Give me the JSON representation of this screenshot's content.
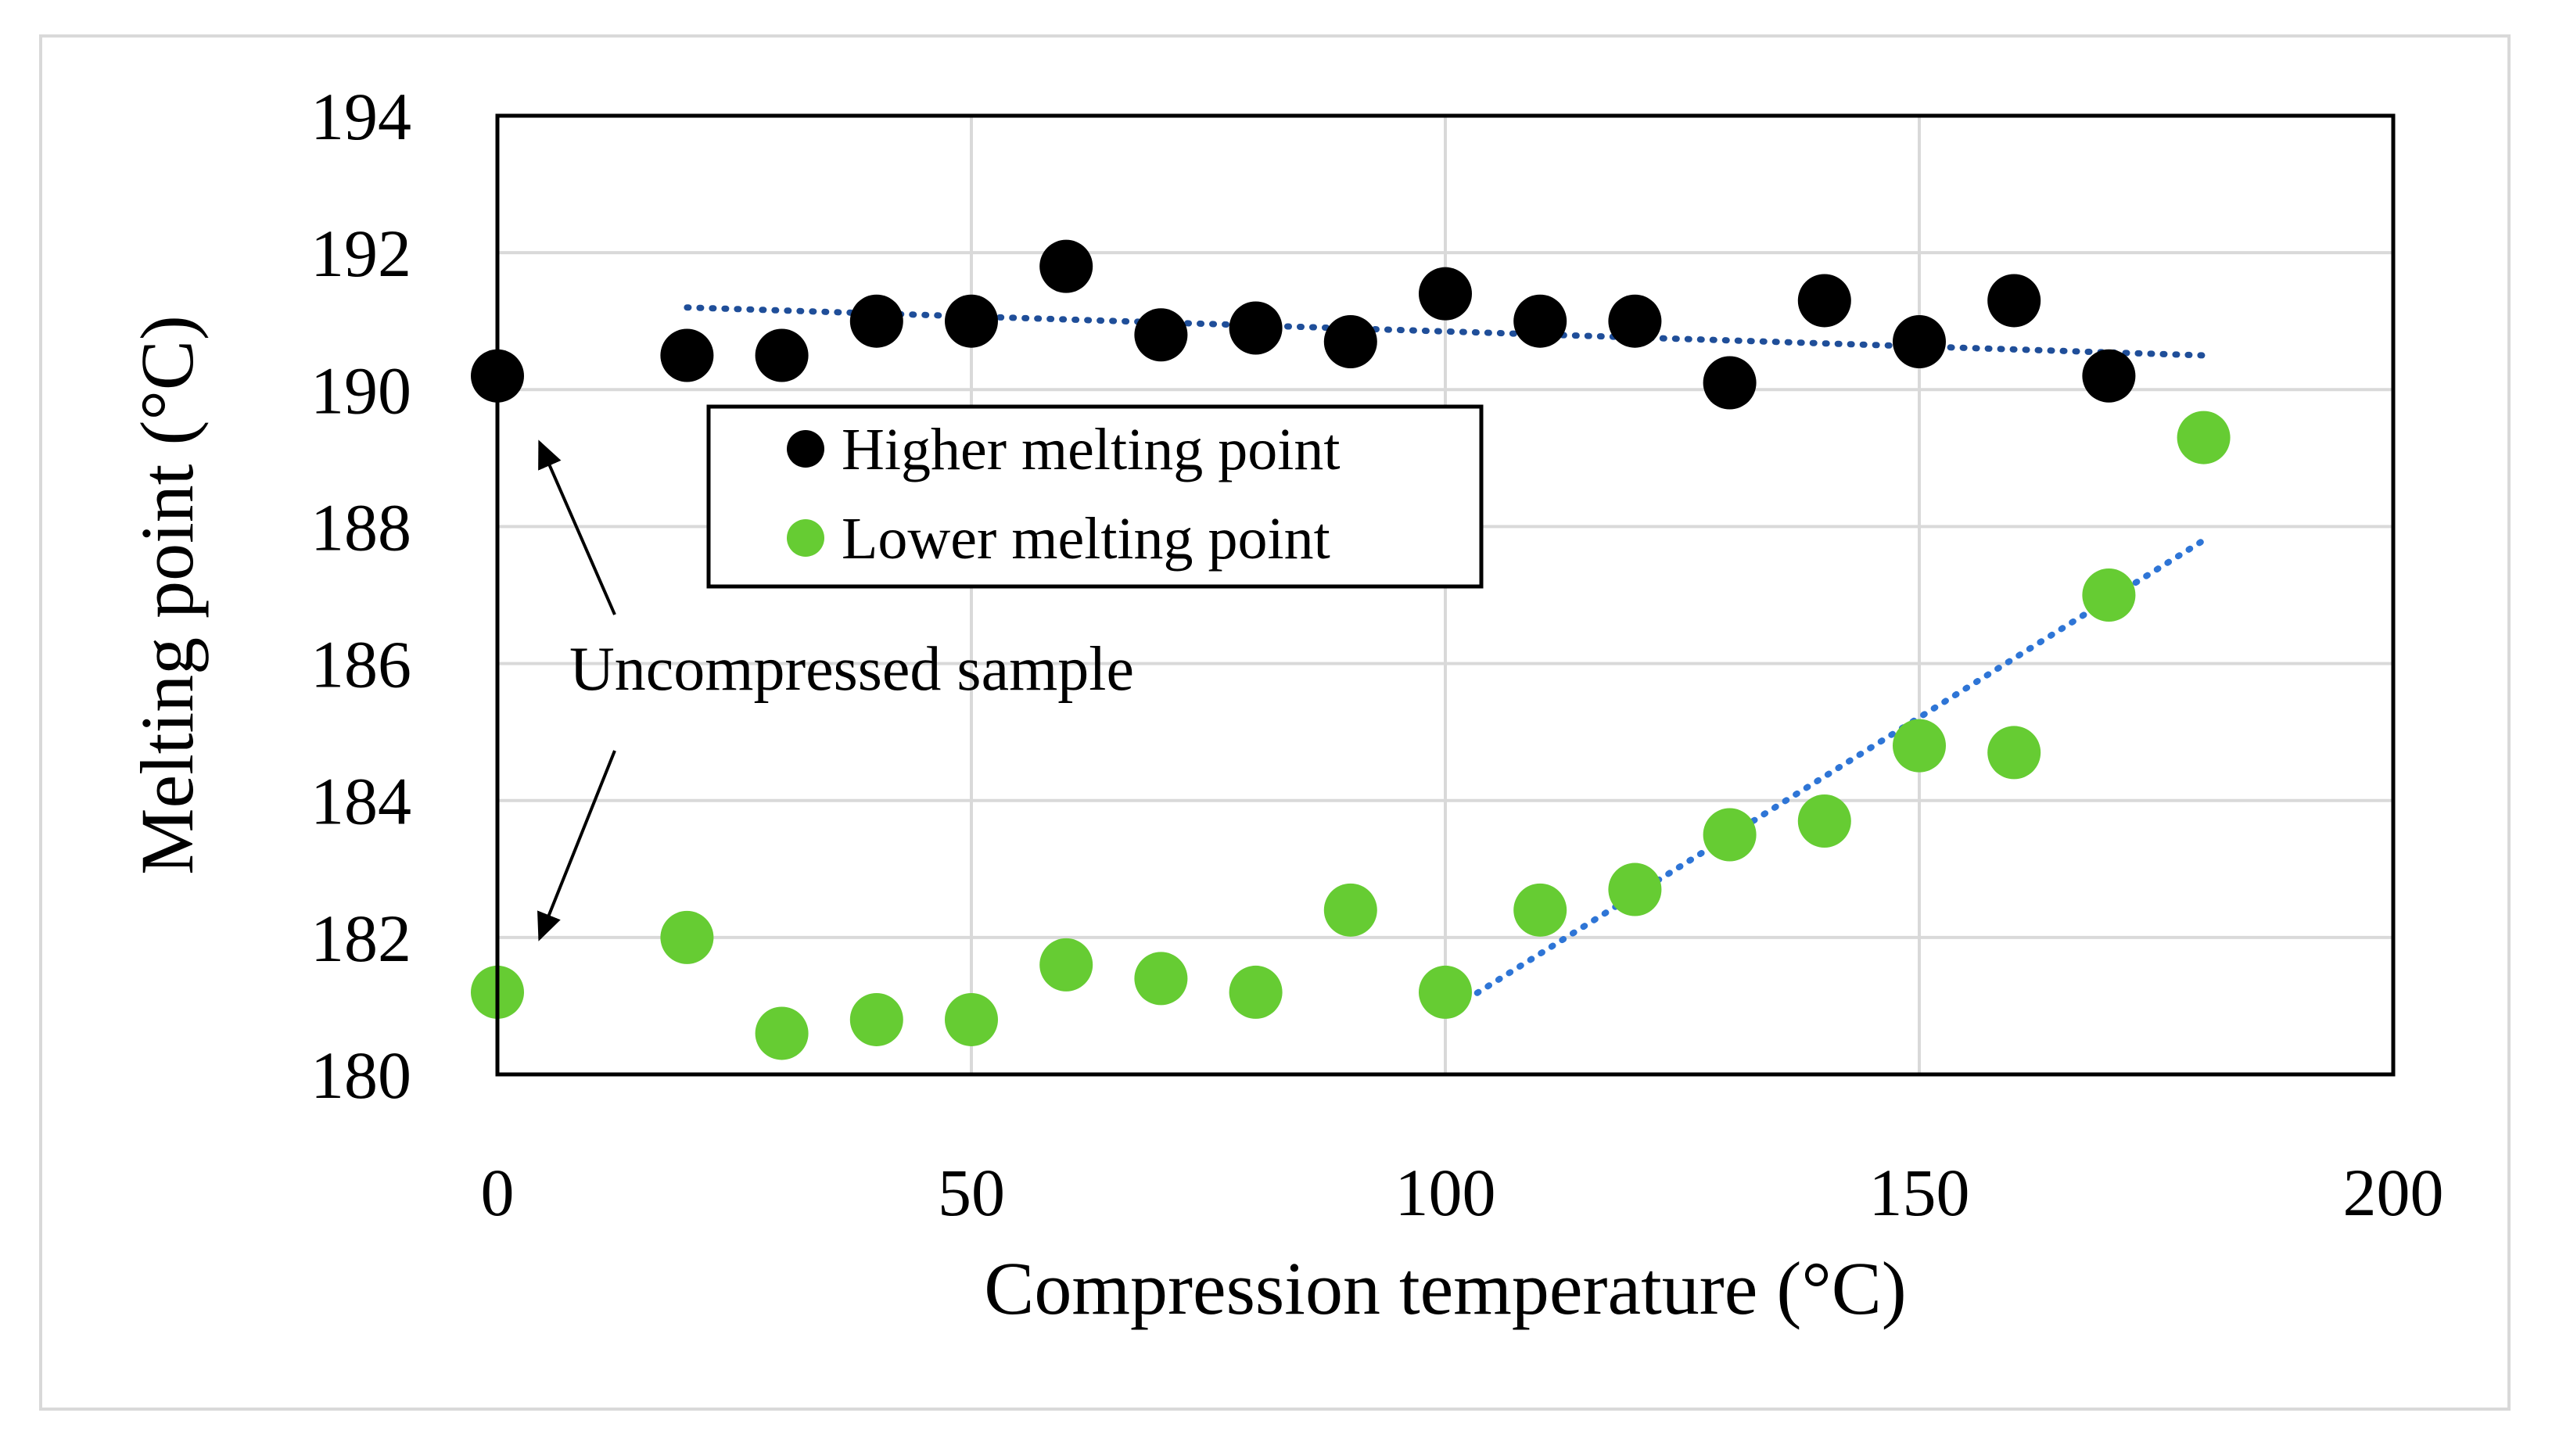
{
  "chart_data": {
    "type": "scatter",
    "title": "",
    "xlabel": "Compression temperature  (°C)",
    "ylabel": "Melting point  (°C)",
    "xlim": [
      0,
      200
    ],
    "ylim": [
      180,
      194
    ],
    "x_ticks": [
      "0",
      "50",
      "100",
      "150",
      "200"
    ],
    "y_ticks": [
      "180",
      "182",
      "184",
      "186",
      "188",
      "190",
      "192",
      "194"
    ],
    "grid": true,
    "legend_position": "center-left",
    "series": [
      {
        "name": "Higher melting point",
        "color": "#000000",
        "points": [
          {
            "x": 0,
            "y": 190.2
          },
          {
            "x": 20,
            "y": 190.5
          },
          {
            "x": 30,
            "y": 190.5
          },
          {
            "x": 40,
            "y": 191.0
          },
          {
            "x": 50,
            "y": 191.0
          },
          {
            "x": 60,
            "y": 191.8
          },
          {
            "x": 70,
            "y": 190.8
          },
          {
            "x": 80,
            "y": 190.9
          },
          {
            "x": 90,
            "y": 190.7
          },
          {
            "x": 100,
            "y": 191.4
          },
          {
            "x": 110,
            "y": 191.0
          },
          {
            "x": 120,
            "y": 191.0
          },
          {
            "x": 130,
            "y": 190.1
          },
          {
            "x": 140,
            "y": 191.3
          },
          {
            "x": 150,
            "y": 190.7
          },
          {
            "x": 160,
            "y": 191.3
          },
          {
            "x": 170,
            "y": 190.2
          }
        ],
        "trendline": {
          "color": "#1f4e99",
          "x": [
            20,
            180
          ],
          "y": [
            191.2,
            190.5
          ]
        }
      },
      {
        "name": "Lower melting point",
        "color": "#66cc33",
        "points": [
          {
            "x": 0,
            "y": 181.2
          },
          {
            "x": 20,
            "y": 182.0
          },
          {
            "x": 30,
            "y": 180.6
          },
          {
            "x": 40,
            "y": 180.8
          },
          {
            "x": 50,
            "y": 180.8
          },
          {
            "x": 60,
            "y": 181.6
          },
          {
            "x": 70,
            "y": 181.4
          },
          {
            "x": 80,
            "y": 181.2
          },
          {
            "x": 90,
            "y": 182.4
          },
          {
            "x": 100,
            "y": 181.2
          },
          {
            "x": 110,
            "y": 182.4
          },
          {
            "x": 120,
            "y": 182.7
          },
          {
            "x": 130,
            "y": 183.5
          },
          {
            "x": 140,
            "y": 183.7
          },
          {
            "x": 150,
            "y": 184.8
          },
          {
            "x": 160,
            "y": 184.7
          },
          {
            "x": 170,
            "y": 187.0
          },
          {
            "x": 180,
            "y": 189.3
          }
        ],
        "trendline": {
          "color": "#2e75d6",
          "x": [
            100,
            180
          ],
          "y": [
            180.9,
            187.8
          ]
        }
      }
    ],
    "annotations": [
      {
        "text": "Uncompressed sample",
        "points_to": [
          {
            "x": 0,
            "y": 190.2
          },
          {
            "x": 0,
            "y": 181.2
          }
        ]
      }
    ]
  }
}
